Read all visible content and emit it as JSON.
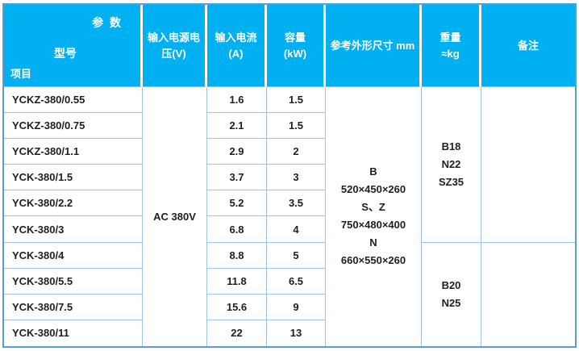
{
  "colors": {
    "header_bg": "#00B0F0",
    "header_text": "#FFFFFF",
    "grid_line": "#9DC3E6",
    "outer_border": "#5B9BD5",
    "data_text": "#1F1F1F"
  },
  "table": {
    "corner": {
      "top_right": "参  数",
      "middle": "型号",
      "bottom_left": "项目"
    },
    "header": {
      "voltage_line1": "输入电源电",
      "voltage_line2": "压(V)",
      "current_line1": "输入电流",
      "current_line2": "(A)",
      "capacity_line1": "容量",
      "capacity_line2": "(kW)",
      "dimensions": "参考外形尺寸 mm",
      "weight_line1": "重量",
      "weight_line2": "≈kg",
      "remarks": "备注"
    },
    "voltage_value": "AC 380V",
    "rows": [
      {
        "model": "YCKZ-380/0.55",
        "current": "1.6",
        "capacity": "1.5"
      },
      {
        "model": "YCKZ-380/0.75",
        "current": "2.1",
        "capacity": "1.5"
      },
      {
        "model": "YCKZ-380/1.1",
        "current": "2.9",
        "capacity": "2"
      },
      {
        "model": "YCK-380/1.5",
        "current": "3.7",
        "capacity": "3"
      },
      {
        "model": "YCK-380/2.2",
        "current": "5.2",
        "capacity": "3.5"
      },
      {
        "model": "YCK-380/3",
        "current": "6.8",
        "capacity": "4"
      },
      {
        "model": "YCK-380/4",
        "current": "8.8",
        "capacity": "5"
      },
      {
        "model": "YCK-380/5.5",
        "current": "11.8",
        "capacity": "6.5"
      },
      {
        "model": "YCK-380/7.5",
        "current": "15.6",
        "capacity": "9"
      },
      {
        "model": "YCK-380/11",
        "current": "22",
        "capacity": "13"
      }
    ],
    "dimensions_lines": [
      "B",
      "520×450×260",
      "S、Z",
      "750×480×400",
      "N",
      "660×550×260"
    ],
    "weight_group1_lines": [
      "B18",
      "N22",
      "SZ35"
    ],
    "weight_group2_lines": [
      "B20",
      "N25"
    ],
    "remarks_group1": "",
    "remarks_group2": ""
  }
}
